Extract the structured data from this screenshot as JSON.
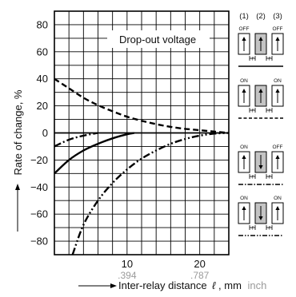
{
  "chart_data": {
    "type": "line",
    "title": "",
    "annotation": "Drop-out voltage",
    "xlabel": "Inter-relay distance",
    "xlabel_symbol": "ℓ",
    "xlabel_unit_mm": ", mm",
    "xlabel_unit_inch": "inch",
    "ylabel": "Rate of change, %",
    "xlim": [
      0,
      24
    ],
    "ylim": [
      -90,
      90
    ],
    "x_ticks": [
      {
        "value": 10,
        "label": "10",
        "sub": ".394"
      },
      {
        "value": 20,
        "label": "20",
        "sub": ".787"
      }
    ],
    "y_ticks": [
      {
        "value": 80,
        "label": "80"
      },
      {
        "value": 60,
        "label": "60"
      },
      {
        "value": 40,
        "label": "40"
      },
      {
        "value": 20,
        "label": "20"
      },
      {
        "value": 0,
        "label": "0"
      },
      {
        "value": -20,
        "label": "−20"
      },
      {
        "value": -40,
        "label": "−40"
      },
      {
        "value": -60,
        "label": "−60"
      },
      {
        "value": -80,
        "label": "−80"
      }
    ],
    "grid": true,
    "legend_placement": "right",
    "series": [
      {
        "style": "dashed",
        "x": [
          0,
          2,
          4,
          6,
          8,
          10,
          12,
          14,
          16,
          18,
          20,
          22,
          24
        ],
        "y": [
          40,
          33,
          26,
          20.5,
          16,
          12,
          9,
          6.5,
          4.5,
          3,
          2,
          1,
          0
        ]
      },
      {
        "style": "solid",
        "x": [
          0,
          2,
          4,
          6,
          8,
          10,
          11
        ],
        "y": [
          -30,
          -20,
          -13,
          -8,
          -4,
          -1,
          0
        ]
      },
      {
        "style": "dash-dot",
        "x": [
          0,
          2,
          4,
          6
        ],
        "y": [
          -10,
          -5,
          -2,
          0
        ]
      },
      {
        "style": "dash-dot-dot",
        "x": [
          2.5,
          4,
          6,
          8,
          10,
          12,
          14,
          16,
          18,
          20,
          22,
          24
        ],
        "y": [
          -90,
          -68,
          -50,
          -37,
          -27,
          -19,
          -13,
          -8,
          -4.5,
          -2,
          -0.5,
          0
        ]
      }
    ]
  },
  "legend": {
    "positions": [
      "(1)",
      "(2)",
      "(3)"
    ],
    "on_label": "ON",
    "off_label": "OFF",
    "gap_label": "ℓ",
    "rows": [
      {
        "left": "OFF",
        "middle_arrow": "up",
        "right": "OFF",
        "line_style": "solid"
      },
      {
        "left": "ON",
        "middle_arrow": "up",
        "right": "ON",
        "line_style": "dashed"
      },
      {
        "left": "ON",
        "middle_arrow": "down",
        "right": "OFF",
        "line_style": "dash-dot"
      },
      {
        "left": "ON",
        "middle_arrow": "down",
        "right": "ON",
        "line_style": "dash-dot-dot"
      }
    ]
  }
}
